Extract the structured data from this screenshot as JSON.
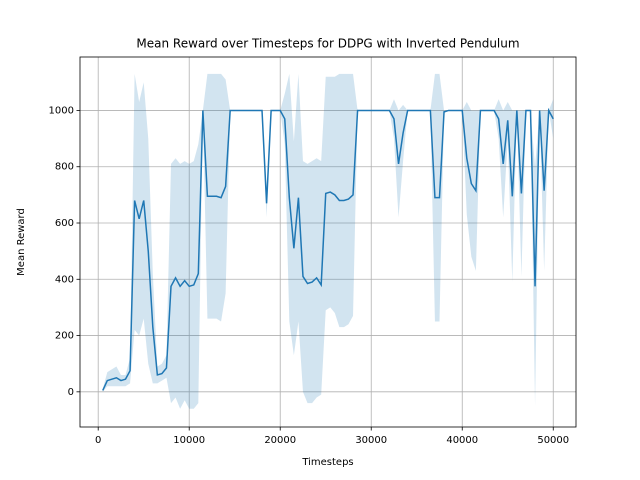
{
  "chart_data": {
    "type": "line",
    "title": "Mean Reward over Timesteps for DDPG with Inverted Pendulum",
    "xlabel": "Timesteps",
    "ylabel": "Mean Reward",
    "color": "#1f77b4",
    "band_color": "#1f77b4",
    "grid": true,
    "xlim": [
      -2000,
      52500
    ],
    "ylim": [
      -125,
      1190
    ],
    "xticks": [
      0,
      10000,
      20000,
      30000,
      40000,
      50000
    ],
    "yticks": [
      0,
      200,
      400,
      600,
      800,
      1000
    ],
    "x": [
      500,
      1000,
      2000,
      2500,
      3000,
      3500,
      4000,
      4500,
      5000,
      5500,
      6000,
      6500,
      7000,
      7500,
      8000,
      8500,
      9000,
      9500,
      10000,
      10500,
      11000,
      11500,
      12000,
      13000,
      13500,
      14000,
      14500,
      18000,
      18500,
      19000,
      20000,
      20500,
      21000,
      21500,
      22000,
      22500,
      23000,
      23500,
      24000,
      24500,
      25000,
      25500,
      26000,
      26500,
      27000,
      27500,
      28000,
      28500,
      32000,
      32500,
      33000,
      33500,
      34000,
      36500,
      37000,
      37500,
      38000,
      38500,
      40000,
      40500,
      41000,
      41500,
      42000,
      43500,
      44000,
      44500,
      45000,
      45500,
      46000,
      46500,
      47000,
      47500,
      48000,
      48500,
      49000,
      49500,
      50000
    ],
    "values": [
      5,
      40,
      50,
      40,
      45,
      75,
      680,
      615,
      680,
      500,
      230,
      60,
      65,
      85,
      375,
      405,
      375,
      395,
      375,
      380,
      420,
      1000,
      695,
      695,
      690,
      730,
      1000,
      1000,
      670,
      1000,
      1000,
      970,
      690,
      510,
      690,
      410,
      385,
      390,
      405,
      380,
      705,
      710,
      700,
      680,
      680,
      685,
      700,
      1000,
      1000,
      970,
      810,
      920,
      1000,
      1000,
      690,
      690,
      995,
      1000,
      1000,
      830,
      740,
      715,
      1000,
      1000,
      970,
      810,
      965,
      695,
      1000,
      705,
      1000,
      1000,
      375,
      1000,
      715,
      1000,
      970
    ],
    "lower": [
      0,
      20,
      20,
      20,
      20,
      30,
      220,
      200,
      260,
      100,
      30,
      30,
      40,
      50,
      -40,
      -20,
      -60,
      -30,
      -60,
      -60,
      -40,
      1000,
      260,
      260,
      250,
      350,
      1000,
      1000,
      620,
      1000,
      1000,
      880,
      250,
      130,
      250,
      0,
      -40,
      -40,
      -20,
      -10,
      290,
      300,
      280,
      230,
      230,
      240,
      270,
      1000,
      1000,
      900,
      620,
      820,
      1000,
      1000,
      250,
      250,
      990,
      1000,
      1000,
      630,
      480,
      430,
      1000,
      1000,
      900,
      620,
      900,
      390,
      1000,
      410,
      1000,
      1000,
      -50,
      1000,
      430,
      1000,
      900
    ],
    "upper": [
      10,
      70,
      90,
      60,
      60,
      120,
      1130,
      1030,
      1100,
      900,
      420,
      90,
      100,
      130,
      810,
      830,
      810,
      820,
      810,
      820,
      880,
      1000,
      1130,
      1130,
      1130,
      1110,
      1000,
      1000,
      720,
      1000,
      1000,
      1060,
      1130,
      890,
      1130,
      820,
      810,
      820,
      830,
      820,
      1120,
      1120,
      1120,
      1130,
      1130,
      1130,
      1130,
      1000,
      1000,
      1040,
      1000,
      1020,
      1000,
      1000,
      1130,
      1130,
      1000,
      1000,
      1000,
      1030,
      1000,
      1000,
      1000,
      1000,
      1040,
      1000,
      1030,
      1000,
      1000,
      1000,
      1000,
      1000,
      800,
      1000,
      1000,
      1000,
      1040
    ]
  }
}
